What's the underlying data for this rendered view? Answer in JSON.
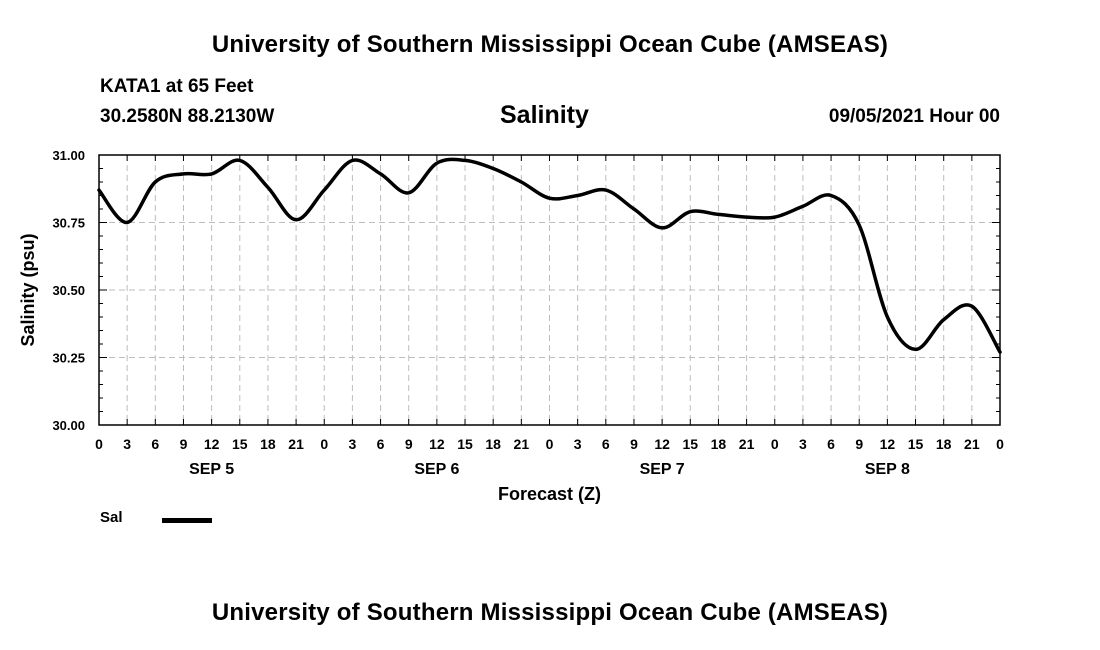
{
  "header": {
    "title": "University of Southern Mississippi Ocean Cube (AMSEAS)",
    "station": "KATA1 at 65 Feet",
    "coords": "30.2580N  88.2130W",
    "variable": "Salinity",
    "forecast_time": "09/05/2021 Hour 00"
  },
  "footer": {
    "title": "University of Southern Mississippi Ocean Cube (AMSEAS)"
  },
  "legend": {
    "label": "Sal",
    "color": "#000000"
  },
  "chart_data": {
    "type": "line",
    "title": "Salinity",
    "xlabel": "Forecast (Z)",
    "ylabel": "Salinity (psu)",
    "ylim": [
      30.0,
      31.0
    ],
    "yticks": [
      "30.00",
      "30.25",
      "30.50",
      "30.75",
      "31.00"
    ],
    "ytick_values": [
      30.0,
      30.25,
      30.5,
      30.75,
      31.0
    ],
    "x_hour_range": [
      0,
      96
    ],
    "x_tick_labels": [
      "0",
      "3",
      "6",
      "9",
      "12",
      "15",
      "18",
      "21",
      "0",
      "3",
      "6",
      "9",
      "12",
      "15",
      "18",
      "21",
      "0",
      "3",
      "6",
      "9",
      "12",
      "15",
      "18",
      "21",
      "0",
      "3",
      "6",
      "9",
      "12",
      "15",
      "18",
      "21",
      "0"
    ],
    "day_labels": [
      {
        "label": "SEP 5",
        "hour": 12
      },
      {
        "label": "SEP 6",
        "hour": 36
      },
      {
        "label": "SEP 7",
        "hour": 60
      },
      {
        "label": "SEP 8",
        "hour": 84
      }
    ],
    "grid": true,
    "series": [
      {
        "name": "Sal",
        "x_hours": [
          0,
          3,
          6,
          9,
          12,
          15,
          18,
          21,
          24,
          27,
          30,
          33,
          36,
          39,
          42,
          45,
          48,
          51,
          54,
          57,
          60,
          63,
          66,
          69,
          72,
          75,
          78,
          81,
          84,
          87,
          90,
          93,
          96
        ],
        "values": [
          30.87,
          30.75,
          30.9,
          30.93,
          30.93,
          30.98,
          30.88,
          30.76,
          30.87,
          30.98,
          30.93,
          30.86,
          30.97,
          30.98,
          30.95,
          30.9,
          30.84,
          30.85,
          30.87,
          30.8,
          30.73,
          30.79,
          30.78,
          30.77,
          30.77,
          30.81,
          30.85,
          30.74,
          30.4,
          30.28,
          30.39,
          30.44,
          30.27
        ]
      }
    ]
  }
}
